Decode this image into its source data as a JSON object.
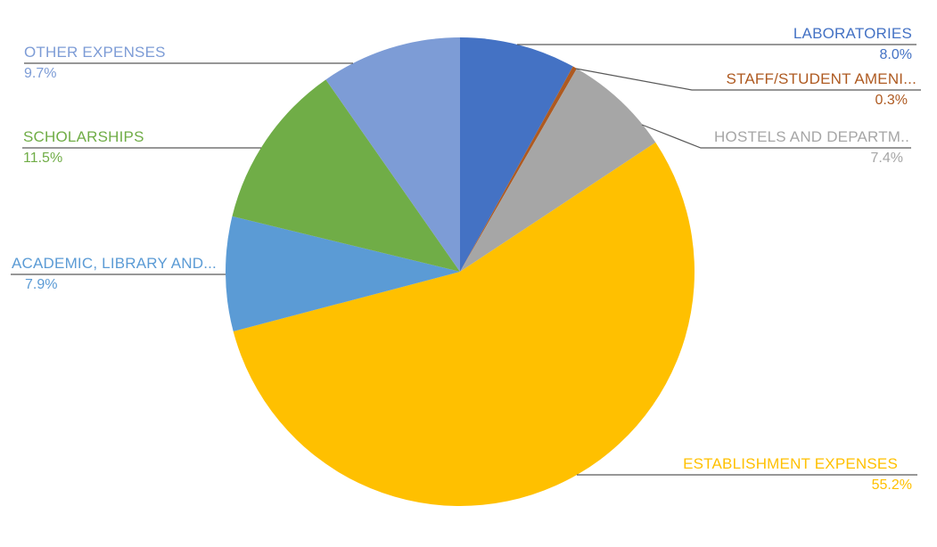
{
  "page": {
    "background": "#FFFFFF"
  },
  "chart_data": {
    "type": "pie",
    "title": "",
    "unit": "percent",
    "rotation_deg": 0,
    "direction": "clockwise",
    "legend": "none",
    "data_labels": "category name and percentage outside with leader lines",
    "leader_line_color": "#595959",
    "slices": [
      {
        "label": "LABORATORIES",
        "value": 8.0,
        "pct_text": "8.0%",
        "color": "#4472C4"
      },
      {
        "label": "STAFF/STUDENT AMENI...",
        "value": 0.3,
        "pct_text": "0.3%",
        "color": "#AE5A21"
      },
      {
        "label": "HOSTELS AND DEPARTM..",
        "value": 7.4,
        "pct_text": "7.4%",
        "color": "#A6A6A6"
      },
      {
        "label": "ESTABLISHMENT EXPENSES",
        "value": 55.2,
        "pct_text": "55.2%",
        "color": "#FFC000"
      },
      {
        "label": "ACADEMIC, LIBRARY AND...",
        "value": 7.9,
        "pct_text": "7.9%",
        "color": "#5B9BD5"
      },
      {
        "label": "SCHOLARSHIPS",
        "value": 11.5,
        "pct_text": "11.5%",
        "color": "#70AD47"
      },
      {
        "label": "OTHER EXPENSES",
        "value": 9.7,
        "pct_text": "9.7%",
        "color": "#7D9CD6"
      }
    ]
  }
}
